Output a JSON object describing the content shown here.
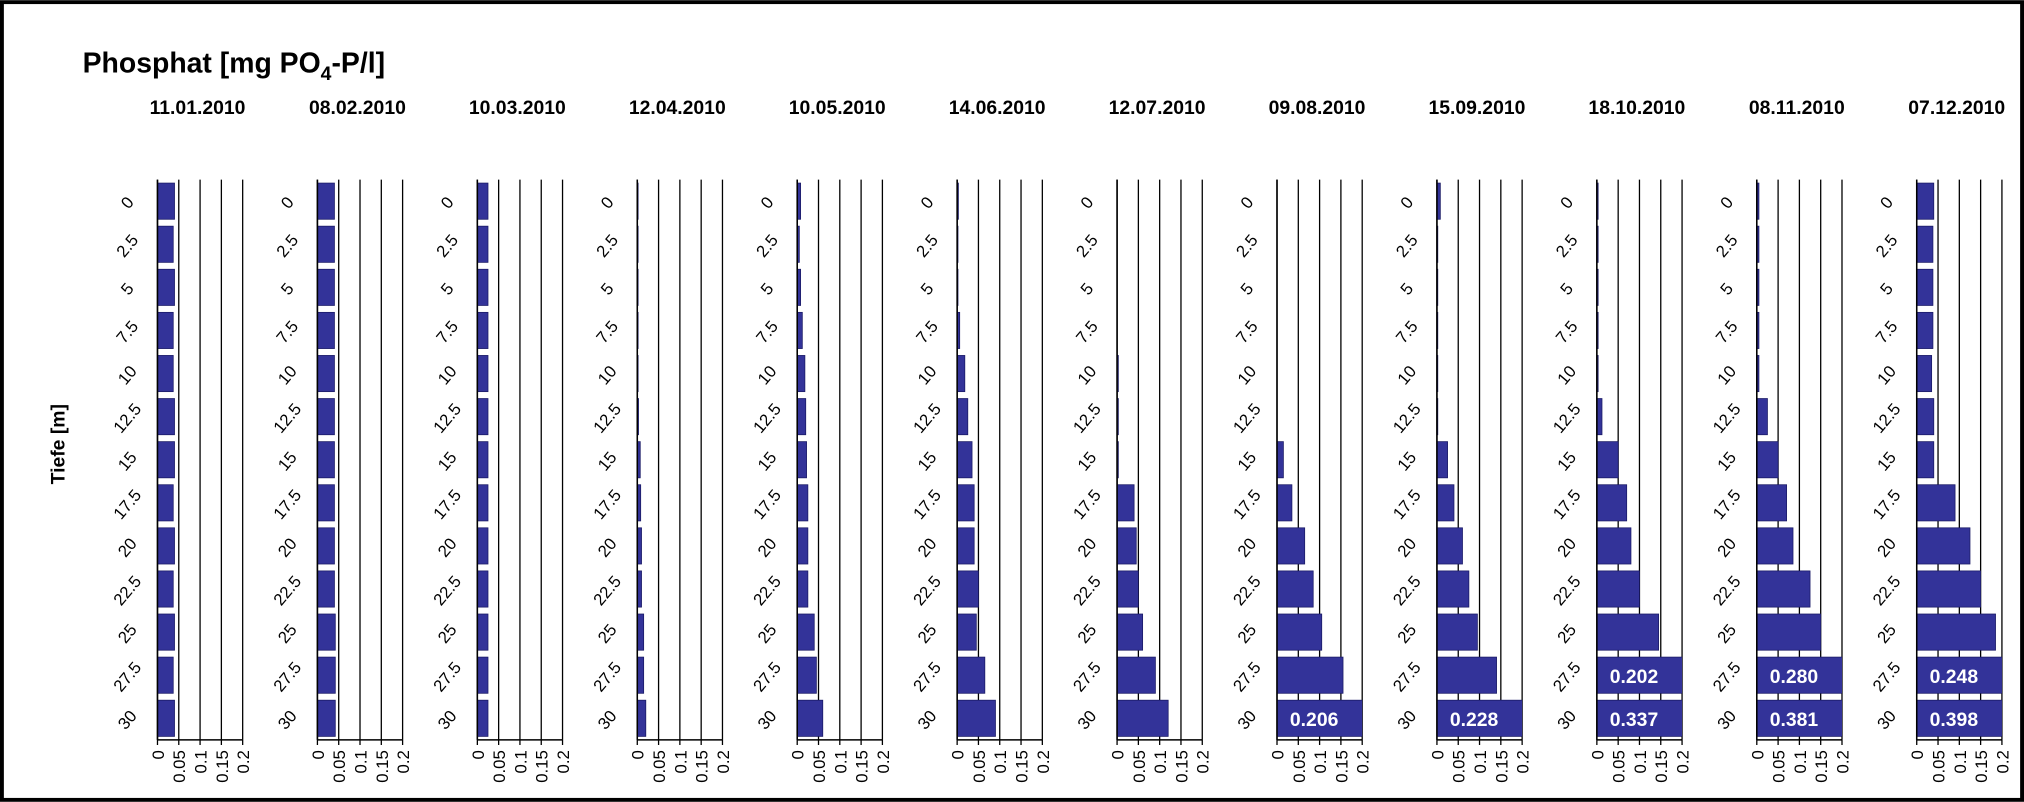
{
  "title": [
    "Phosphat [mg PO",
    "4",
    "-P/l]"
  ],
  "ylabel": "Tiefe [m]",
  "chart_data": [
    {
      "type": "barh",
      "title": "11.01.2010",
      "color": "#333399",
      "categories": [
        "0",
        "2.5",
        "5",
        "7.5",
        "10",
        "12.5",
        "15",
        "17.5",
        "20",
        "22.5",
        "25",
        "27.5",
        "30"
      ],
      "values": [
        0.04,
        0.037,
        0.04,
        0.037,
        0.037,
        0.04,
        0.04,
        0.037,
        0.04,
        0.037,
        0.04,
        0.037,
        0.04
      ],
      "xlim": [
        0,
        0.2
      ],
      "xticks": [
        0,
        0.05,
        0.1,
        0.15,
        0.2
      ],
      "grid": true
    },
    {
      "type": "barh",
      "title": "08.02.2010",
      "color": "#333399",
      "categories": [
        "0",
        "2.5",
        "5",
        "7.5",
        "10",
        "12.5",
        "15",
        "17.5",
        "20",
        "22.5",
        "25",
        "27.5",
        "30"
      ],
      "values": [
        0.04,
        0.04,
        0.04,
        0.04,
        0.04,
        0.04,
        0.04,
        0.04,
        0.04,
        0.04,
        0.042,
        0.042,
        0.042
      ],
      "xlim": [
        0,
        0.2
      ],
      "xticks": [
        0,
        0.05,
        0.1,
        0.15,
        0.2
      ],
      "grid": true
    },
    {
      "type": "barh",
      "title": "10.03.2010",
      "color": "#333399",
      "categories": [
        "0",
        "2.5",
        "5",
        "7.5",
        "10",
        "12.5",
        "15",
        "17.5",
        "20",
        "22.5",
        "25",
        "27.5",
        "30"
      ],
      "values": [
        0.025,
        0.025,
        0.025,
        0.025,
        0.025,
        0.025,
        0.025,
        0.025,
        0.025,
        0.025,
        0.025,
        0.025,
        0.025
      ],
      "xlim": [
        0,
        0.2
      ],
      "xticks": [
        0,
        0.05,
        0.1,
        0.15,
        0.2
      ],
      "grid": true
    },
    {
      "type": "barh",
      "title": "12.04.2010",
      "color": "#333399",
      "categories": [
        "0",
        "2.5",
        "5",
        "7.5",
        "10",
        "12.5",
        "15",
        "17.5",
        "20",
        "22.5",
        "25",
        "27.5",
        "30"
      ],
      "values": [
        0.002,
        0.002,
        0.002,
        0.002,
        0.002,
        0.003,
        0.007,
        0.008,
        0.01,
        0.01,
        0.015,
        0.015,
        0.02
      ],
      "xlim": [
        0,
        0.2
      ],
      "xticks": [
        0,
        0.05,
        0.1,
        0.15,
        0.2
      ],
      "grid": true
    },
    {
      "type": "barh",
      "title": "10.05.2010",
      "color": "#333399",
      "categories": [
        "0",
        "2.5",
        "5",
        "7.5",
        "10",
        "12.5",
        "15",
        "17.5",
        "20",
        "22.5",
        "25",
        "27.5",
        "30"
      ],
      "values": [
        0.008,
        0.005,
        0.008,
        0.012,
        0.018,
        0.02,
        0.022,
        0.025,
        0.025,
        0.025,
        0.04,
        0.045,
        0.06
      ],
      "xlim": [
        0,
        0.2
      ],
      "xticks": [
        0,
        0.05,
        0.1,
        0.15,
        0.2
      ],
      "grid": true
    },
    {
      "type": "barh",
      "title": "14.06.2010",
      "color": "#333399",
      "categories": [
        "0",
        "2.5",
        "5",
        "7.5",
        "10",
        "12.5",
        "15",
        "17.5",
        "20",
        "22.5",
        "25",
        "27.5",
        "30"
      ],
      "values": [
        0.003,
        0.002,
        0.002,
        0.006,
        0.018,
        0.025,
        0.035,
        0.04,
        0.04,
        0.05,
        0.045,
        0.065,
        0.09
      ],
      "xlim": [
        0,
        0.2
      ],
      "xticks": [
        0,
        0.05,
        0.1,
        0.15,
        0.2
      ],
      "grid": true
    },
    {
      "type": "barh",
      "title": "12.07.2010",
      "color": "#333399",
      "categories": [
        "0",
        "2.5",
        "5",
        "7.5",
        "10",
        "12.5",
        "15",
        "17.5",
        "20",
        "22.5",
        "25",
        "27.5",
        "30"
      ],
      "values": [
        0,
        0,
        0,
        0,
        0.003,
        0.003,
        0.003,
        0.04,
        0.045,
        0.05,
        0.06,
        0.09,
        0.12
      ],
      "xlim": [
        0,
        0.2
      ],
      "xticks": [
        0,
        0.05,
        0.1,
        0.15,
        0.2
      ],
      "grid": true
    },
    {
      "type": "barh",
      "title": "09.08.2010",
      "color": "#333399",
      "categories": [
        "0",
        "2.5",
        "5",
        "7.5",
        "10",
        "12.5",
        "15",
        "17.5",
        "20",
        "22.5",
        "25",
        "27.5",
        "30"
      ],
      "values": [
        0,
        0,
        0,
        0,
        0,
        0,
        0.015,
        0.035,
        0.065,
        0.085,
        0.105,
        0.155,
        0.206
      ],
      "value_labels": [
        null,
        null,
        null,
        null,
        null,
        null,
        null,
        null,
        null,
        null,
        null,
        null,
        "0.206"
      ],
      "xlim": [
        0,
        0.2
      ],
      "xticks": [
        0,
        0.05,
        0.1,
        0.15,
        0.2
      ],
      "grid": true
    },
    {
      "type": "barh",
      "title": "15.09.2010",
      "color": "#333399",
      "categories": [
        "0",
        "2.5",
        "5",
        "7.5",
        "10",
        "12.5",
        "15",
        "17.5",
        "20",
        "22.5",
        "25",
        "27.5",
        "30"
      ],
      "values": [
        0.008,
        0.002,
        0.002,
        0.002,
        0.002,
        0.002,
        0.025,
        0.04,
        0.06,
        0.075,
        0.095,
        0.14,
        0.228
      ],
      "value_labels": [
        null,
        null,
        null,
        null,
        null,
        null,
        null,
        null,
        null,
        null,
        null,
        null,
        "0.228"
      ],
      "xlim": [
        0,
        0.2
      ],
      "xticks": [
        0,
        0.05,
        0.1,
        0.15,
        0.2
      ],
      "grid": true
    },
    {
      "type": "barh",
      "title": "18.10.2010",
      "color": "#333399",
      "categories": [
        "0",
        "2.5",
        "5",
        "7.5",
        "10",
        "12.5",
        "15",
        "17.5",
        "20",
        "22.5",
        "25",
        "27.5",
        "30"
      ],
      "values": [
        0.003,
        0.003,
        0.003,
        0.003,
        0.003,
        0.012,
        0.05,
        0.07,
        0.08,
        0.1,
        0.145,
        0.202,
        0.337
      ],
      "value_labels": [
        null,
        null,
        null,
        null,
        null,
        null,
        null,
        null,
        null,
        null,
        null,
        "0.202",
        "0.337"
      ],
      "xlim": [
        0,
        0.2
      ],
      "xticks": [
        0,
        0.05,
        0.1,
        0.15,
        0.2
      ],
      "grid": true
    },
    {
      "type": "barh",
      "title": "08.11.2010",
      "color": "#333399",
      "categories": [
        "0",
        "2.5",
        "5",
        "7.5",
        "10",
        "12.5",
        "15",
        "17.5",
        "20",
        "22.5",
        "25",
        "27.5",
        "30"
      ],
      "values": [
        0.005,
        0.005,
        0.005,
        0.005,
        0.005,
        0.025,
        0.05,
        0.07,
        0.085,
        0.125,
        0.15,
        0.28,
        0.381
      ],
      "value_labels": [
        null,
        null,
        null,
        null,
        null,
        null,
        null,
        null,
        null,
        null,
        null,
        "0.280",
        "0.381"
      ],
      "xlim": [
        0,
        0.2
      ],
      "xticks": [
        0,
        0.05,
        0.1,
        0.15,
        0.2
      ],
      "grid": true
    },
    {
      "type": "barh",
      "title": "07.12.2010",
      "color": "#333399",
      "categories": [
        "0",
        "2.5",
        "5",
        "7.5",
        "10",
        "12.5",
        "15",
        "17.5",
        "20",
        "22.5",
        "25",
        "27.5",
        "30"
      ],
      "values": [
        0.04,
        0.038,
        0.038,
        0.038,
        0.035,
        0.04,
        0.04,
        0.09,
        0.125,
        0.15,
        0.185,
        0.248,
        0.398
      ],
      "value_labels": [
        null,
        null,
        null,
        null,
        null,
        null,
        null,
        null,
        null,
        null,
        null,
        "0.248",
        "0.398"
      ],
      "xlim": [
        0,
        0.2
      ],
      "xticks": [
        0,
        0.05,
        0.1,
        0.15,
        0.2
      ],
      "grid": true
    }
  ]
}
